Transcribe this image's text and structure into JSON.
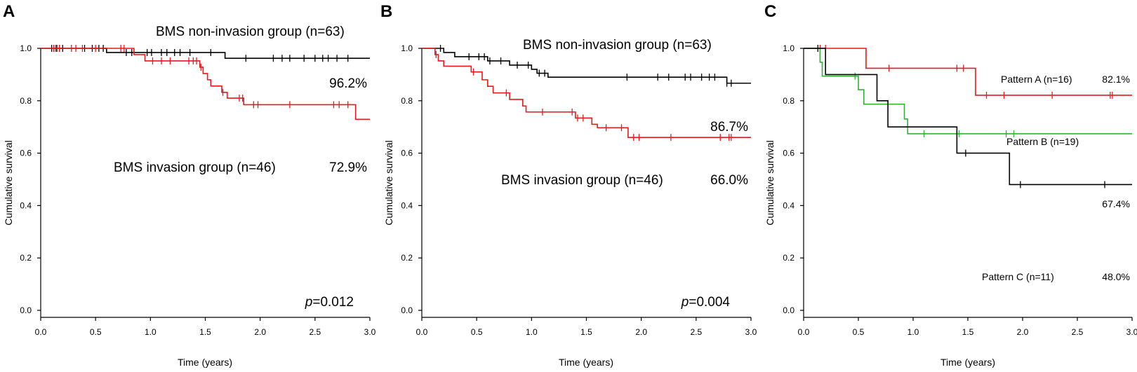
{
  "chart_data": [
    {
      "type": "line",
      "panel_label": "A",
      "xlabel": "Time (years)",
      "ylabel": "Cumulative survival",
      "xlim": [
        0,
        3
      ],
      "ylim": [
        0,
        1
      ],
      "xticks": [
        "0.0",
        "0.5",
        "1.0",
        "1.5",
        "2.0",
        "2.5",
        "3.0"
      ],
      "yticks": [
        "0.0",
        "0.2",
        "0.4",
        "0.6",
        "0.8",
        "1.0"
      ],
      "series": [
        {
          "name": "BMS non-invasion group (n=63)",
          "color": "#000000",
          "end_label": "96.2%",
          "steps": [
            [
              0,
              1.0
            ],
            [
              0.6,
              0.984
            ],
            [
              1.68,
              0.962
            ],
            [
              3.0,
              0.962
            ]
          ],
          "censors": [
            0.1,
            0.12,
            0.14,
            0.17,
            0.2,
            0.4,
            0.47,
            0.53,
            0.57,
            0.78,
            0.83,
            0.97,
            1.01,
            1.1,
            1.15,
            1.22,
            1.27,
            1.36,
            1.55,
            1.87,
            2.12,
            2.2,
            2.27,
            2.4,
            2.5,
            2.57,
            2.62,
            2.7,
            2.8
          ]
        },
        {
          "name": "BMS invasion group (n=46)",
          "color": "#e8191c",
          "end_label": "72.9%",
          "steps": [
            [
              0,
              1.0
            ],
            [
              0.85,
              0.976
            ],
            [
              0.95,
              0.952
            ],
            [
              1.45,
              0.928
            ],
            [
              1.48,
              0.904
            ],
            [
              1.52,
              0.88
            ],
            [
              1.55,
              0.856
            ],
            [
              1.65,
              0.832
            ],
            [
              1.7,
              0.81
            ],
            [
              1.85,
              0.785
            ],
            [
              2.87,
              0.729
            ],
            [
              3.0,
              0.729
            ]
          ],
          "censors": [
            0.12,
            0.15,
            0.17,
            0.28,
            0.32,
            0.38,
            0.5,
            0.73,
            0.76,
            1.02,
            1.1,
            1.18,
            1.35,
            1.39,
            1.42,
            1.46,
            1.66,
            1.81,
            1.84,
            1.94,
            1.98,
            2.27,
            2.67,
            2.72,
            2.8
          ]
        }
      ],
      "annotations": {
        "series0_label": "BMS non-invasion group (n=63)",
        "series1_label": "BMS invasion group (n=46)",
        "series0_pct": "96.2%",
        "series1_pct": "72.9%",
        "p_prefix": "p",
        "p_value": "=0.012"
      }
    },
    {
      "type": "line",
      "panel_label": "B",
      "xlabel": "Time (years)",
      "ylabel": "Cumulative survival",
      "xlim": [
        0,
        3
      ],
      "ylim": [
        0,
        1
      ],
      "xticks": [
        "0.0",
        "0.5",
        "1.0",
        "1.5",
        "2.0",
        "2.5",
        "3.0"
      ],
      "yticks": [
        "0.0",
        "0.2",
        "0.4",
        "0.6",
        "0.8",
        "1.0"
      ],
      "series": [
        {
          "name": "BMS non-invasion group (n=63)",
          "color": "#000000",
          "end_label": "86.7%",
          "steps": [
            [
              0,
              1.0
            ],
            [
              0.2,
              0.984
            ],
            [
              0.3,
              0.968
            ],
            [
              0.6,
              0.952
            ],
            [
              0.8,
              0.936
            ],
            [
              1.0,
              0.92
            ],
            [
              1.05,
              0.905
            ],
            [
              1.15,
              0.89
            ],
            [
              2.78,
              0.867
            ],
            [
              3.0,
              0.867
            ]
          ],
          "censors": [
            0.17,
            0.43,
            0.52,
            0.57,
            0.62,
            0.72,
            0.87,
            0.97,
            1.07,
            1.12,
            1.87,
            2.15,
            2.25,
            2.4,
            2.45,
            2.55,
            2.62,
            2.67,
            2.78,
            2.82
          ]
        },
        {
          "name": "BMS invasion group (n=46)",
          "color": "#e8191c",
          "end_label": "66.0%",
          "steps": [
            [
              0,
              1.0
            ],
            [
              0.12,
              0.976
            ],
            [
              0.15,
              0.952
            ],
            [
              0.2,
              0.932
            ],
            [
              0.45,
              0.91
            ],
            [
              0.55,
              0.88
            ],
            [
              0.6,
              0.855
            ],
            [
              0.65,
              0.83
            ],
            [
              0.8,
              0.805
            ],
            [
              0.92,
              0.78
            ],
            [
              0.95,
              0.757
            ],
            [
              1.4,
              0.734
            ],
            [
              1.55,
              0.71
            ],
            [
              1.6,
              0.697
            ],
            [
              1.88,
              0.66
            ],
            [
              3.0,
              0.66
            ]
          ],
          "censors": [
            0.13,
            0.47,
            0.77,
            1.1,
            1.37,
            1.42,
            1.47,
            1.68,
            1.82,
            1.93,
            1.98,
            2.27,
            2.72,
            2.8,
            2.82
          ]
        }
      ],
      "annotations": {
        "series0_label": "BMS non-invasion group (n=63)",
        "series1_label": "BMS invasion group (n=46)",
        "series0_pct": "86.7%",
        "series1_pct": "66.0%",
        "p_prefix": "p",
        "p_value": "=0.004"
      }
    },
    {
      "type": "line",
      "panel_label": "C",
      "xlabel": "Time (years)",
      "ylabel": "Cumulative survival",
      "xlim": [
        0,
        3
      ],
      "ylim": [
        0,
        1
      ],
      "xticks": [
        "0.0",
        "0.5",
        "1.0",
        "1.5",
        "2.0",
        "2.5",
        "3.0"
      ],
      "yticks": [
        "0.0",
        "0.2",
        "0.4",
        "0.6",
        "0.8",
        "1.0"
      ],
      "series": [
        {
          "name": "Pattern A (n=16)",
          "color": "#e8191c",
          "end_label": "82.1%",
          "steps": [
            [
              0,
              1.0
            ],
            [
              0.57,
              0.924
            ],
            [
              1.57,
              0.821
            ],
            [
              3.0,
              0.821
            ]
          ],
          "censors": [
            0.15,
            0.2,
            0.78,
            1.4,
            1.46,
            1.67,
            1.83,
            2.27,
            2.8,
            2.82
          ]
        },
        {
          "name": "Pattern B (n=19)",
          "color": "#33b233",
          "end_label": "67.4%",
          "steps": [
            [
              0,
              1.0
            ],
            [
              0.15,
              0.947
            ],
            [
              0.17,
              0.894
            ],
            [
              0.5,
              0.842
            ],
            [
              0.55,
              0.787
            ],
            [
              0.92,
              0.73
            ],
            [
              0.95,
              0.674
            ],
            [
              3.0,
              0.674
            ]
          ],
          "censors": [
            0.47,
            1.1,
            1.42,
            1.85,
            1.92
          ]
        },
        {
          "name": "Pattern C (n=11)",
          "color": "#000000",
          "end_label": "48.0%",
          "steps": [
            [
              0,
              1.0
            ],
            [
              0.2,
              0.9
            ],
            [
              0.67,
              0.8
            ],
            [
              0.77,
              0.7
            ],
            [
              1.4,
              0.6
            ],
            [
              1.88,
              0.48
            ],
            [
              3.0,
              0.48
            ]
          ],
          "censors": [
            0.13,
            1.48,
            1.98,
            2.75
          ]
        }
      ],
      "annotations": {
        "series0_label": "Pattern A (n=16)",
        "series1_label": "Pattern B (n=19)",
        "series2_label": "Pattern C (n=11)",
        "series0_pct": "82.1%",
        "series1_pct": "67.4%",
        "series2_pct": "48.0%"
      }
    }
  ]
}
